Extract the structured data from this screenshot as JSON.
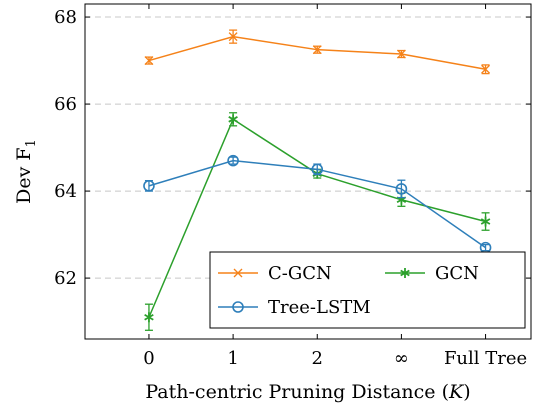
{
  "chart_data": {
    "type": "line",
    "xlabel": "Path-centric Pruning Distance (K)",
    "ylabel": "Dev F1",
    "categories": [
      "0",
      "1",
      "2",
      "∞",
      "Full Tree"
    ],
    "yticks": [
      62,
      64,
      66,
      68
    ],
    "ylim": [
      60.6,
      68.3
    ],
    "grid": true,
    "legend_position": "bottom-right",
    "series": [
      {
        "name": "C-GCN",
        "color": "#f58219",
        "marker": "x",
        "values": [
          67.0,
          67.55,
          67.25,
          67.15,
          66.8
        ],
        "errors": [
          0.08,
          0.15,
          0.08,
          0.08,
          0.1
        ]
      },
      {
        "name": "GCN",
        "color": "#2ca02c",
        "marker": "star",
        "values": [
          61.1,
          65.65,
          64.4,
          63.8,
          63.3
        ],
        "errors": [
          0.3,
          0.15,
          0.1,
          0.15,
          0.2
        ]
      },
      {
        "name": "Tree-LSTM",
        "color": "#2e7fba",
        "marker": "circle",
        "values": [
          64.12,
          64.7,
          64.5,
          64.05,
          62.7
        ],
        "errors": [
          0.12,
          0.08,
          0.12,
          0.2,
          0.07
        ]
      }
    ]
  }
}
